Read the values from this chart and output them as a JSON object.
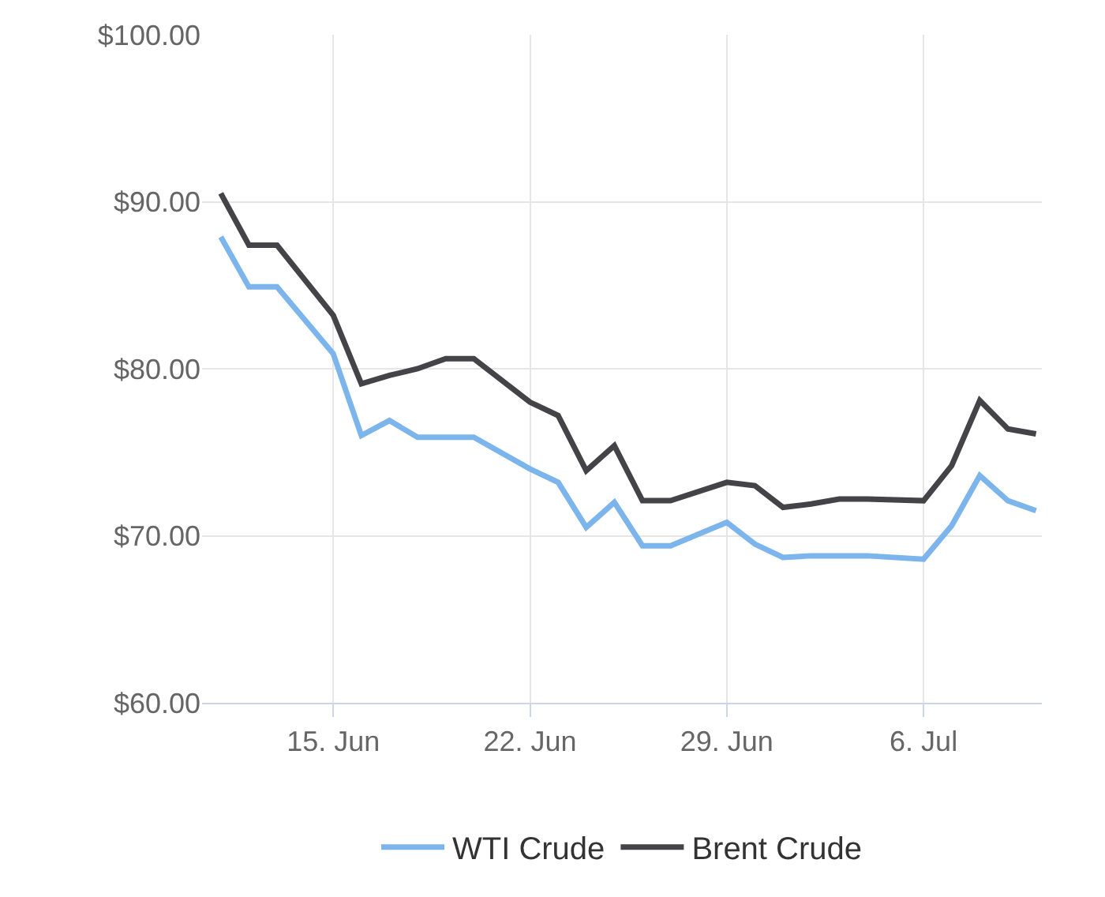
{
  "chart_data": {
    "type": "line",
    "x": [
      "--06-11",
      "--06-12",
      "--06-13",
      "--06-15",
      "--06-16",
      "--06-17",
      "--06-18",
      "--06-19",
      "--06-20",
      "--06-22",
      "--06-23",
      "--06-24",
      "--06-25",
      "--06-26",
      "--06-27",
      "--06-29",
      "--06-30",
      "--07-01",
      "--07-02",
      "--07-03",
      "--07-04",
      "--07-06",
      "--07-07",
      "--07-08",
      "--07-09",
      "--07-10"
    ],
    "series": [
      {
        "name": "WTI Crude",
        "color": "#7cb5ec",
        "values": [
          87.9,
          84.9,
          84.9,
          80.9,
          76.0,
          76.9,
          75.9,
          75.9,
          75.9,
          74.0,
          73.2,
          70.5,
          72.0,
          69.4,
          69.4,
          70.8,
          69.5,
          68.7,
          68.8,
          68.8,
          68.8,
          68.6,
          70.6,
          73.6,
          72.1,
          71.5
        ]
      },
      {
        "name": "Brent Crude",
        "color": "#434348",
        "values": [
          90.5,
          87.4,
          87.4,
          83.2,
          79.1,
          79.6,
          80.0,
          80.6,
          80.6,
          78.0,
          77.2,
          73.9,
          75.4,
          72.1,
          72.1,
          73.2,
          73.0,
          71.7,
          71.9,
          72.2,
          72.2,
          72.1,
          74.2,
          78.1,
          76.4,
          76.1
        ]
      }
    ],
    "xlim": [
      "--06-10T08:00",
      "--07-10T05:00"
    ],
    "xticks": [
      {
        "value": "--06-15",
        "label": "15. Jun"
      },
      {
        "value": "--06-22",
        "label": "22. Jun"
      },
      {
        "value": "--06-29",
        "label": "29. Jun"
      },
      {
        "value": "--07-06",
        "label": "6. Jul"
      }
    ],
    "ylim": [
      60,
      100
    ],
    "yticks": [
      {
        "value": 60,
        "label": "$60.00"
      },
      {
        "value": 70,
        "label": "$70.00"
      },
      {
        "value": 80,
        "label": "$80.00"
      },
      {
        "value": 90,
        "label": "$90.00"
      },
      {
        "value": 100,
        "label": "$100.00"
      }
    ],
    "grid": true,
    "legend": "bottom",
    "marker": "none",
    "line_style": "solid"
  }
}
